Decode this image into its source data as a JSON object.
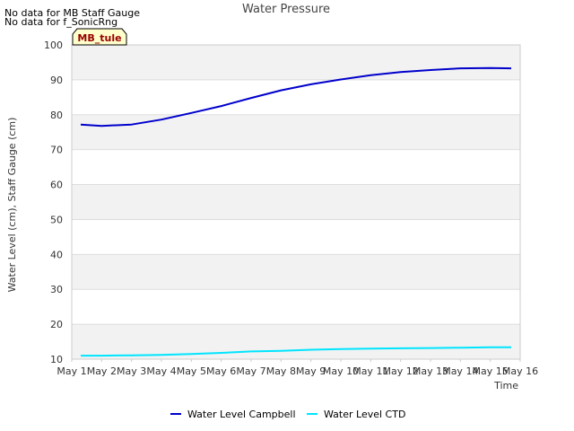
{
  "notes": [
    "No data for MB Staff Gauge",
    "No data for f_SonicRng"
  ],
  "chart_data": {
    "type": "line",
    "title": "Water Pressure",
    "xlabel": "Time",
    "ylabel": "Water Level (cm), Staff Gauge (cm)",
    "site_label": "MB_tule",
    "x_ticks": [
      "May 1",
      "May 2",
      "May 3",
      "May 4",
      "May 5",
      "May 6",
      "May 7",
      "May 8",
      "May 9",
      "May 10",
      "May 11",
      "May 12",
      "May 13",
      "May 14",
      "May 15",
      "May 16"
    ],
    "xlim": [
      0,
      15
    ],
    "ylim": [
      10,
      100
    ],
    "y_ticks": [
      10,
      20,
      30,
      40,
      50,
      60,
      70,
      80,
      90,
      100
    ],
    "grid": true,
    "legend_position": "bottom",
    "x": [
      0.3,
      1.0,
      2.0,
      3.0,
      4.0,
      5.0,
      6.0,
      7.0,
      8.0,
      9.0,
      10.0,
      11.0,
      12.0,
      13.0,
      14.0,
      14.7
    ],
    "series": [
      {
        "name": "Water Level Campbell",
        "color": "#0000cc",
        "values": [
          77.2,
          76.8,
          77.2,
          78.6,
          80.5,
          82.5,
          84.8,
          87.0,
          88.7,
          90.1,
          91.3,
          92.2,
          92.8,
          93.3,
          93.4,
          93.3
        ]
      },
      {
        "name": "Water Level CTD",
        "color": "#00e5ff",
        "values": [
          11.0,
          11.0,
          11.1,
          11.2,
          11.5,
          11.8,
          12.2,
          12.4,
          12.7,
          12.9,
          13.0,
          13.1,
          13.2,
          13.3,
          13.4,
          13.4
        ]
      }
    ]
  }
}
